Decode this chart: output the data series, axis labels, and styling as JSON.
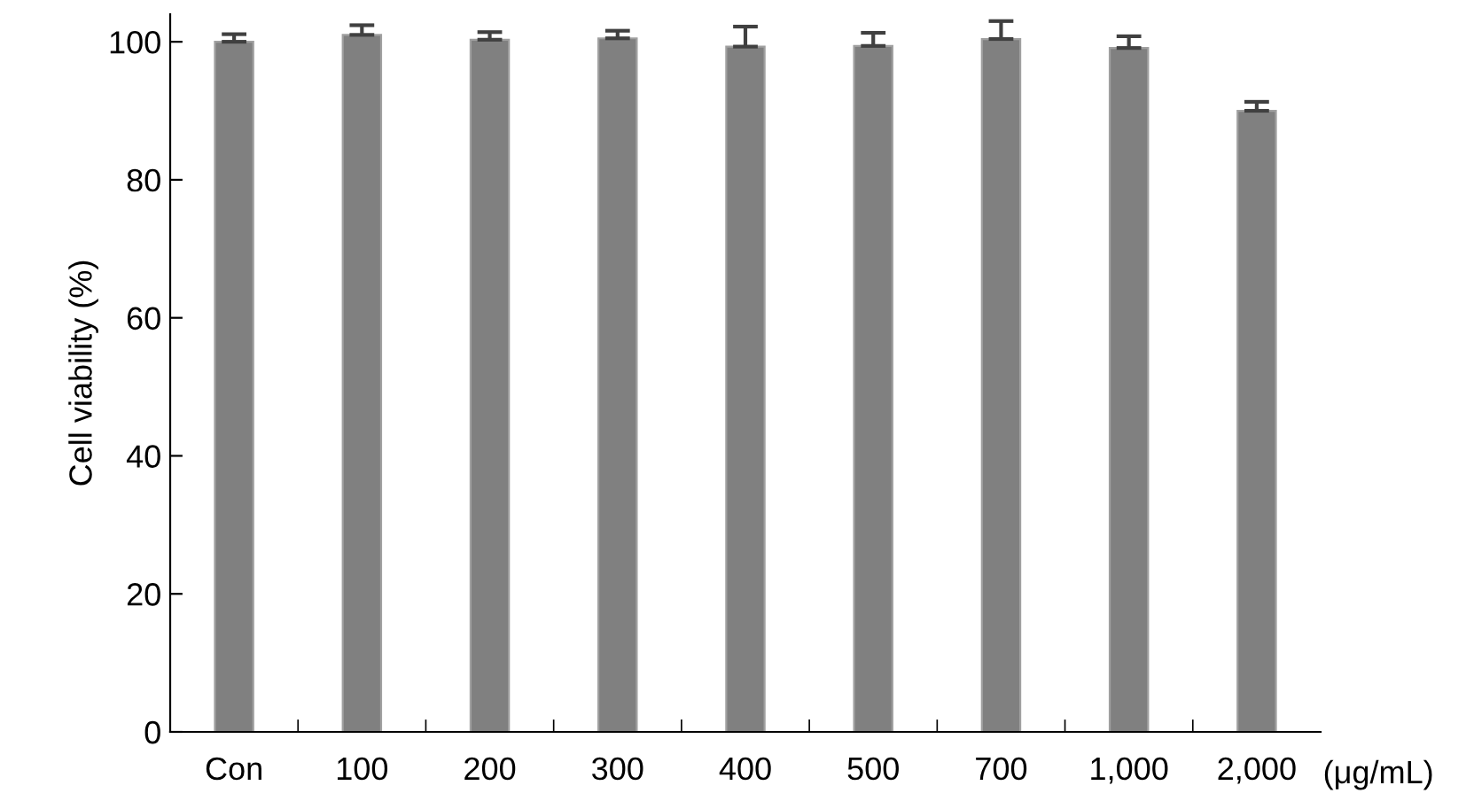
{
  "chart_data": {
    "type": "bar",
    "xlabel": "(μg/mL)",
    "ylabel": "Cell viability (%)",
    "categories": [
      "Con",
      "100",
      "200",
      "300",
      "400",
      "500",
      "700",
      "1,000",
      "2,000"
    ],
    "values": [
      100.0,
      101.0,
      100.3,
      100.5,
      99.3,
      99.4,
      100.4,
      99.1,
      90.0
    ],
    "errors": [
      [
        100.0,
        101.1
      ],
      [
        101.0,
        102.4
      ],
      [
        100.3,
        101.4
      ],
      [
        100.5,
        101.6
      ],
      [
        99.3,
        102.2
      ],
      [
        99.4,
        101.3
      ],
      [
        100.4,
        103.0
      ],
      [
        99.1,
        100.8
      ],
      [
        90.0,
        91.3
      ]
    ],
    "color": "#808080",
    "ylim": [
      0,
      104
    ],
    "yticks": [
      0,
      20,
      40,
      60,
      80,
      100
    ],
    "grid": false,
    "legend": false
  }
}
